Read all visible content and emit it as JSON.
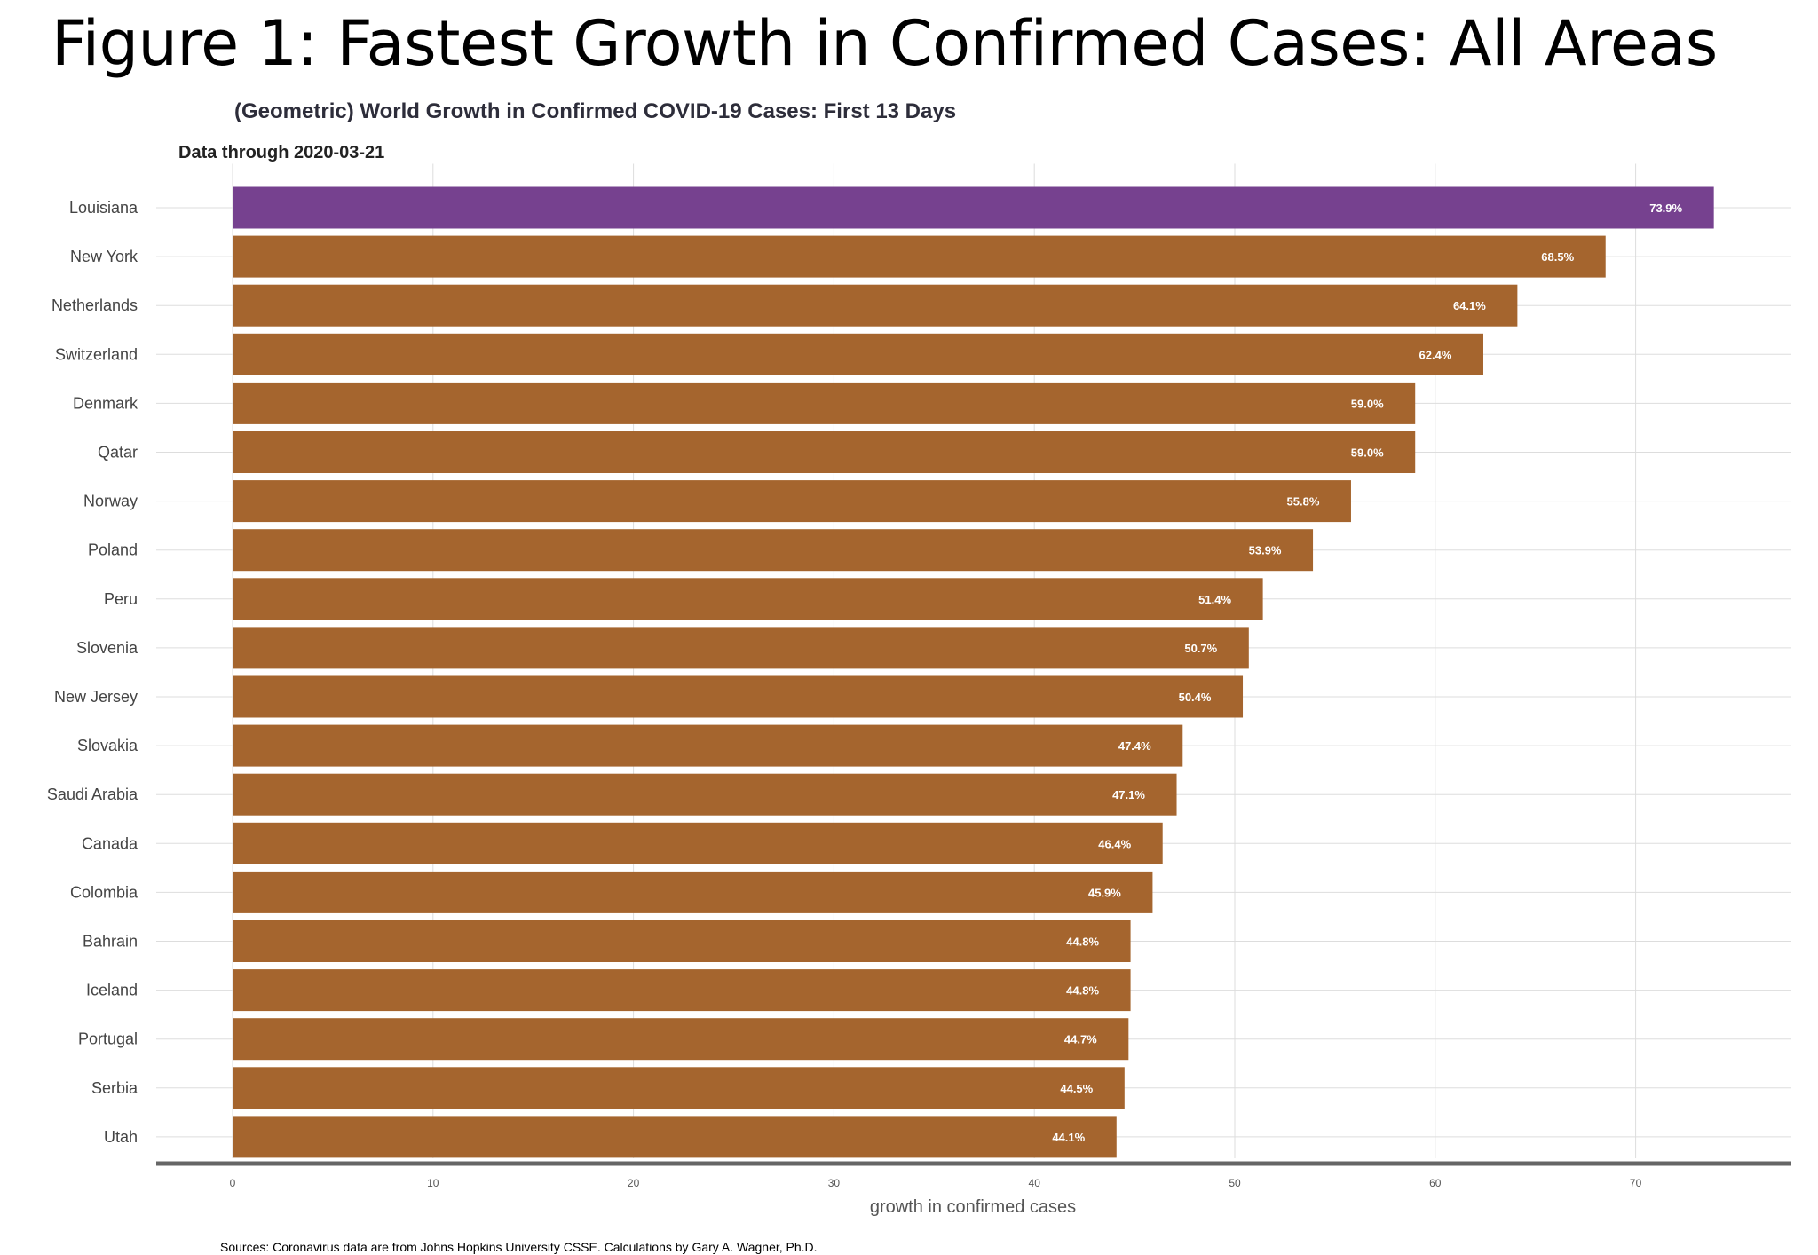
{
  "figure_title": "Figure 1: Fastest Growth in Confirmed Cases: All Areas",
  "source_note": "Sources: Coronavirus data are from Johns Hopkins University CSSE. Calculations by Gary A. Wagner, Ph.D.",
  "colors": {
    "highlight": "#76418f",
    "bar": "#a5652e",
    "grid": "#dddddd",
    "axis": "#666666"
  },
  "chart_data": {
    "type": "bar",
    "orientation": "horizontal",
    "title": "(Geometric) World Growth in Confirmed COVID-19 Cases: First 13 Days",
    "subtitle": "Data through 2020-03-21",
    "xlabel": "growth in confirmed cases",
    "ylabel": "",
    "xlim": [
      0,
      74
    ],
    "xticks": [
      0,
      10,
      20,
      30,
      40,
      50,
      60,
      70
    ],
    "grid": true,
    "highlight_category": "Louisiana",
    "categories": [
      "Louisiana",
      "New York",
      "Netherlands",
      "Switzerland",
      "Denmark",
      "Qatar",
      "Norway",
      "Poland",
      "Peru",
      "Slovenia",
      "New Jersey",
      "Slovakia",
      "Saudi Arabia",
      "Canada",
      "Colombia",
      "Bahrain",
      "Iceland",
      "Portugal",
      "Serbia",
      "Utah"
    ],
    "values": [
      73.9,
      68.5,
      64.1,
      62.4,
      59.0,
      59.0,
      55.8,
      53.9,
      51.4,
      50.7,
      50.4,
      47.4,
      47.1,
      46.4,
      45.9,
      44.8,
      44.8,
      44.7,
      44.5,
      44.1
    ],
    "value_labels": [
      "73.9%",
      "68.5%",
      "64.1%",
      "62.4%",
      "59.0%",
      "59.0%",
      "55.8%",
      "53.9%",
      "51.4%",
      "50.7%",
      "50.4%",
      "47.4%",
      "47.1%",
      "46.4%",
      "45.9%",
      "44.8%",
      "44.8%",
      "44.7%",
      "44.5%",
      "44.1%"
    ]
  }
}
